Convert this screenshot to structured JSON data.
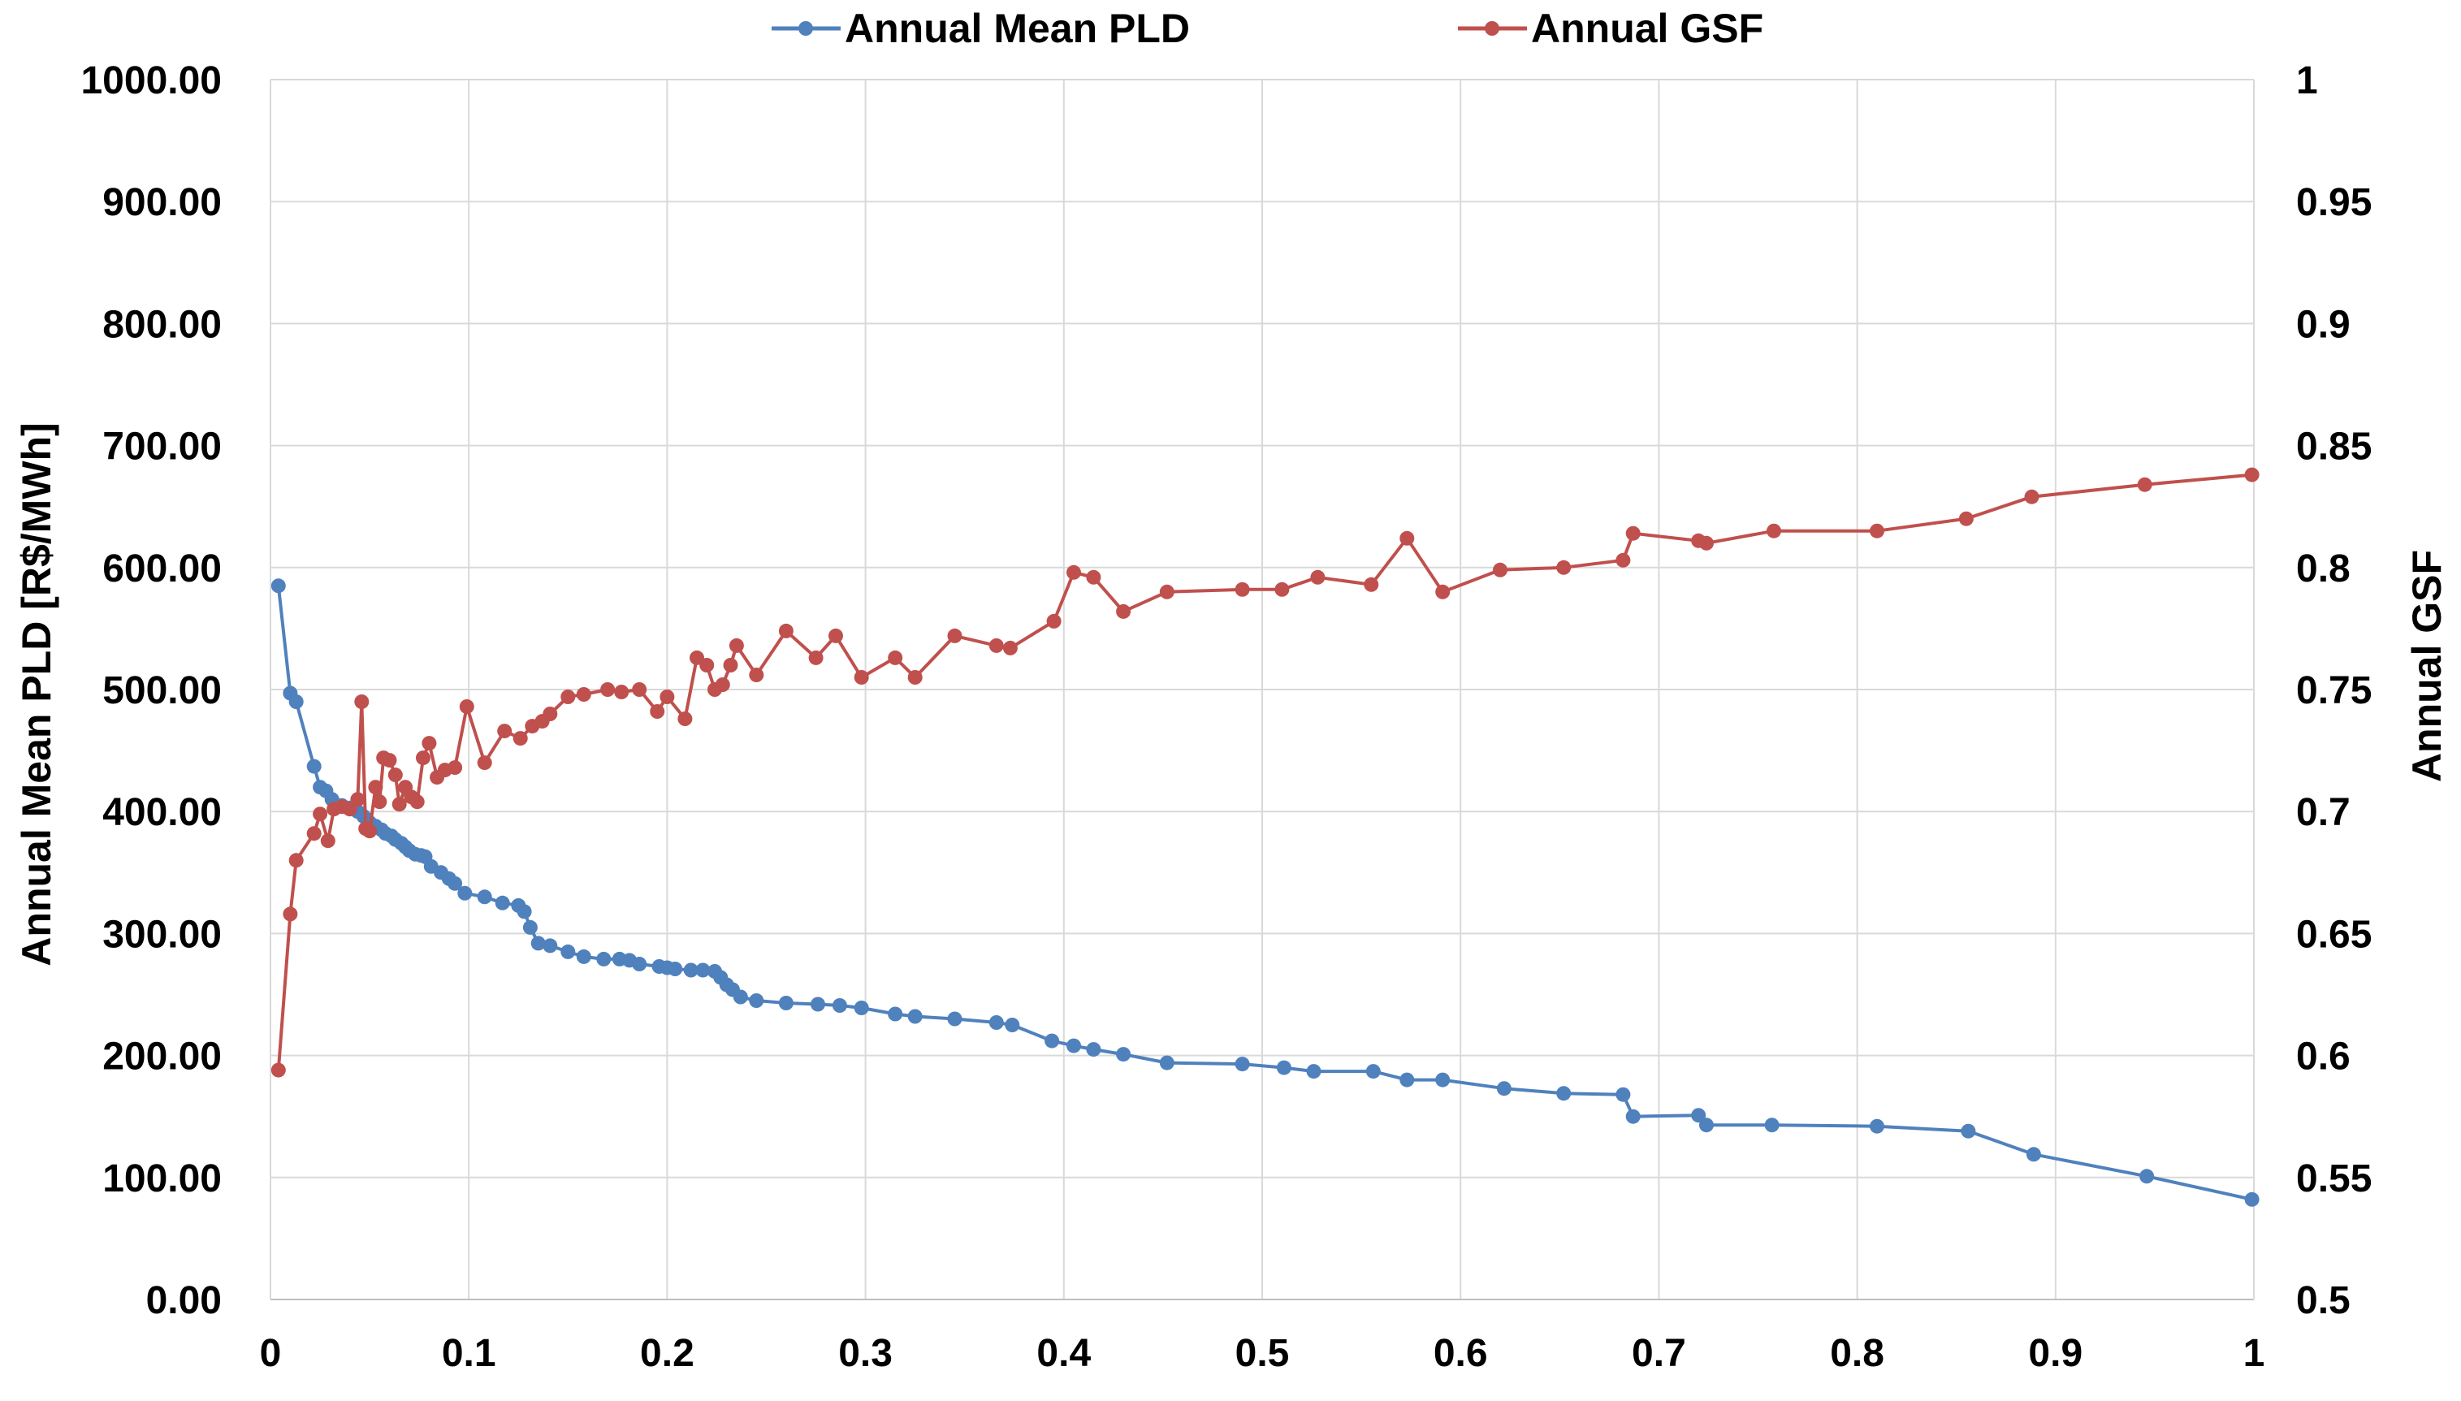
{
  "chart_data": {
    "type": "line",
    "title": "",
    "xlabel": "",
    "ylabel": "Annual Mean PLD [R$/MWh]",
    "y2label": "Annual GSF",
    "xlim": [
      0,
      1
    ],
    "ylim": [
      0,
      1000
    ],
    "y2lim": [
      0.5,
      1
    ],
    "grid": true,
    "legend_position": "top-center",
    "x_ticks": [
      "0",
      "0.1",
      "0.2",
      "0.3",
      "0.4",
      "0.5",
      "0.6",
      "0.7",
      "0.8",
      "0.9",
      "1"
    ],
    "y_ticks": [
      "0.00",
      "100.00",
      "200.00",
      "300.00",
      "400.00",
      "500.00",
      "600.00",
      "700.00",
      "800.00",
      "900.00",
      "1000.00"
    ],
    "y2_ticks": [
      "0.5",
      "0.55",
      "0.6",
      "0.65",
      "0.7",
      "0.75",
      "0.8",
      "0.85",
      "0.9",
      "0.95",
      "1"
    ],
    "series": [
      {
        "name": "Annual Mean PLD",
        "axis": "left",
        "color": "#4F81BD",
        "points": [
          [
            0.004,
            585
          ],
          [
            0.01,
            497
          ],
          [
            0.013,
            490
          ],
          [
            0.022,
            437
          ],
          [
            0.025,
            420
          ],
          [
            0.028,
            417
          ],
          [
            0.031,
            410
          ],
          [
            0.036,
            405
          ],
          [
            0.04,
            403
          ],
          [
            0.044,
            400
          ],
          [
            0.047,
            396
          ],
          [
            0.05,
            391
          ],
          [
            0.053,
            388
          ],
          [
            0.056,
            385
          ],
          [
            0.058,
            382
          ],
          [
            0.061,
            380
          ],
          [
            0.063,
            377
          ],
          [
            0.066,
            374
          ],
          [
            0.068,
            371
          ],
          [
            0.07,
            368
          ],
          [
            0.073,
            365
          ],
          [
            0.076,
            364
          ],
          [
            0.078,
            363
          ],
          [
            0.081,
            355
          ],
          [
            0.086,
            350
          ],
          [
            0.09,
            345
          ],
          [
            0.093,
            341
          ],
          [
            0.098,
            333
          ],
          [
            0.108,
            330
          ],
          [
            0.117,
            325
          ],
          [
            0.125,
            323
          ],
          [
            0.128,
            318
          ],
          [
            0.131,
            305
          ],
          [
            0.135,
            292
          ],
          [
            0.141,
            290
          ],
          [
            0.15,
            285
          ],
          [
            0.158,
            281
          ],
          [
            0.168,
            279
          ],
          [
            0.176,
            279
          ],
          [
            0.181,
            278
          ],
          [
            0.186,
            275
          ],
          [
            0.196,
            273
          ],
          [
            0.2,
            272
          ],
          [
            0.204,
            271
          ],
          [
            0.212,
            270
          ],
          [
            0.218,
            270
          ],
          [
            0.224,
            269
          ],
          [
            0.227,
            264
          ],
          [
            0.23,
            258
          ],
          [
            0.233,
            254
          ],
          [
            0.237,
            248
          ],
          [
            0.245,
            245
          ],
          [
            0.26,
            243
          ],
          [
            0.276,
            242
          ],
          [
            0.287,
            241
          ],
          [
            0.298,
            239
          ],
          [
            0.315,
            234
          ],
          [
            0.325,
            232
          ],
          [
            0.345,
            230
          ],
          [
            0.366,
            227
          ],
          [
            0.374,
            225
          ],
          [
            0.394,
            212
          ],
          [
            0.405,
            208
          ],
          [
            0.415,
            205
          ],
          [
            0.43,
            201
          ],
          [
            0.452,
            194
          ],
          [
            0.49,
            193
          ],
          [
            0.511,
            190
          ],
          [
            0.526,
            187
          ],
          [
            0.556,
            187
          ],
          [
            0.573,
            180
          ],
          [
            0.591,
            180
          ],
          [
            0.622,
            173
          ],
          [
            0.652,
            169
          ],
          [
            0.682,
            168
          ],
          [
            0.687,
            150
          ],
          [
            0.72,
            151
          ],
          [
            0.724,
            143
          ],
          [
            0.757,
            143
          ],
          [
            0.81,
            142
          ],
          [
            0.856,
            138
          ],
          [
            0.889,
            119
          ],
          [
            0.946,
            101
          ],
          [
            0.999,
            82
          ]
        ]
      },
      {
        "name": "Annual GSF",
        "axis": "right",
        "color": "#C0504D",
        "points": [
          [
            0.004,
            0.594
          ],
          [
            0.01,
            0.658
          ],
          [
            0.013,
            0.68
          ],
          [
            0.022,
            0.691
          ],
          [
            0.025,
            0.699
          ],
          [
            0.029,
            0.688
          ],
          [
            0.032,
            0.701
          ],
          [
            0.036,
            0.702
          ],
          [
            0.04,
            0.701
          ],
          [
            0.044,
            0.705
          ],
          [
            0.046,
            0.745
          ],
          [
            0.048,
            0.693
          ],
          [
            0.05,
            0.692
          ],
          [
            0.053,
            0.71
          ],
          [
            0.055,
            0.704
          ],
          [
            0.057,
            0.722
          ],
          [
            0.06,
            0.721
          ],
          [
            0.063,
            0.715
          ],
          [
            0.065,
            0.703
          ],
          [
            0.068,
            0.71
          ],
          [
            0.071,
            0.706
          ],
          [
            0.074,
            0.704
          ],
          [
            0.077,
            0.722
          ],
          [
            0.08,
            0.728
          ],
          [
            0.084,
            0.714
          ],
          [
            0.088,
            0.717
          ],
          [
            0.093,
            0.718
          ],
          [
            0.099,
            0.743
          ],
          [
            0.108,
            0.72
          ],
          [
            0.118,
            0.733
          ],
          [
            0.126,
            0.73
          ],
          [
            0.132,
            0.735
          ],
          [
            0.137,
            0.737
          ],
          [
            0.141,
            0.74
          ],
          [
            0.15,
            0.747
          ],
          [
            0.158,
            0.748
          ],
          [
            0.17,
            0.75
          ],
          [
            0.177,
            0.749
          ],
          [
            0.186,
            0.75
          ],
          [
            0.195,
            0.741
          ],
          [
            0.2,
            0.747
          ],
          [
            0.209,
            0.738
          ],
          [
            0.215,
            0.763
          ],
          [
            0.22,
            0.76
          ],
          [
            0.224,
            0.75
          ],
          [
            0.228,
            0.752
          ],
          [
            0.232,
            0.76
          ],
          [
            0.235,
            0.768
          ],
          [
            0.245,
            0.756
          ],
          [
            0.26,
            0.774
          ],
          [
            0.275,
            0.763
          ],
          [
            0.285,
            0.772
          ],
          [
            0.298,
            0.755
          ],
          [
            0.315,
            0.763
          ],
          [
            0.325,
            0.755
          ],
          [
            0.345,
            0.772
          ],
          [
            0.366,
            0.768
          ],
          [
            0.373,
            0.767
          ],
          [
            0.395,
            0.778
          ],
          [
            0.405,
            0.798
          ],
          [
            0.415,
            0.796
          ],
          [
            0.43,
            0.782
          ],
          [
            0.452,
            0.79
          ],
          [
            0.49,
            0.791
          ],
          [
            0.51,
            0.791
          ],
          [
            0.528,
            0.796
          ],
          [
            0.555,
            0.793
          ],
          [
            0.573,
            0.812
          ],
          [
            0.591,
            0.79
          ],
          [
            0.62,
            0.799
          ],
          [
            0.652,
            0.8
          ],
          [
            0.682,
            0.803
          ],
          [
            0.687,
            0.814
          ],
          [
            0.72,
            0.811
          ],
          [
            0.724,
            0.81
          ],
          [
            0.758,
            0.815
          ],
          [
            0.81,
            0.815
          ],
          [
            0.855,
            0.82
          ],
          [
            0.888,
            0.829
          ],
          [
            0.945,
            0.834
          ],
          [
            0.999,
            0.838
          ]
        ]
      }
    ]
  }
}
